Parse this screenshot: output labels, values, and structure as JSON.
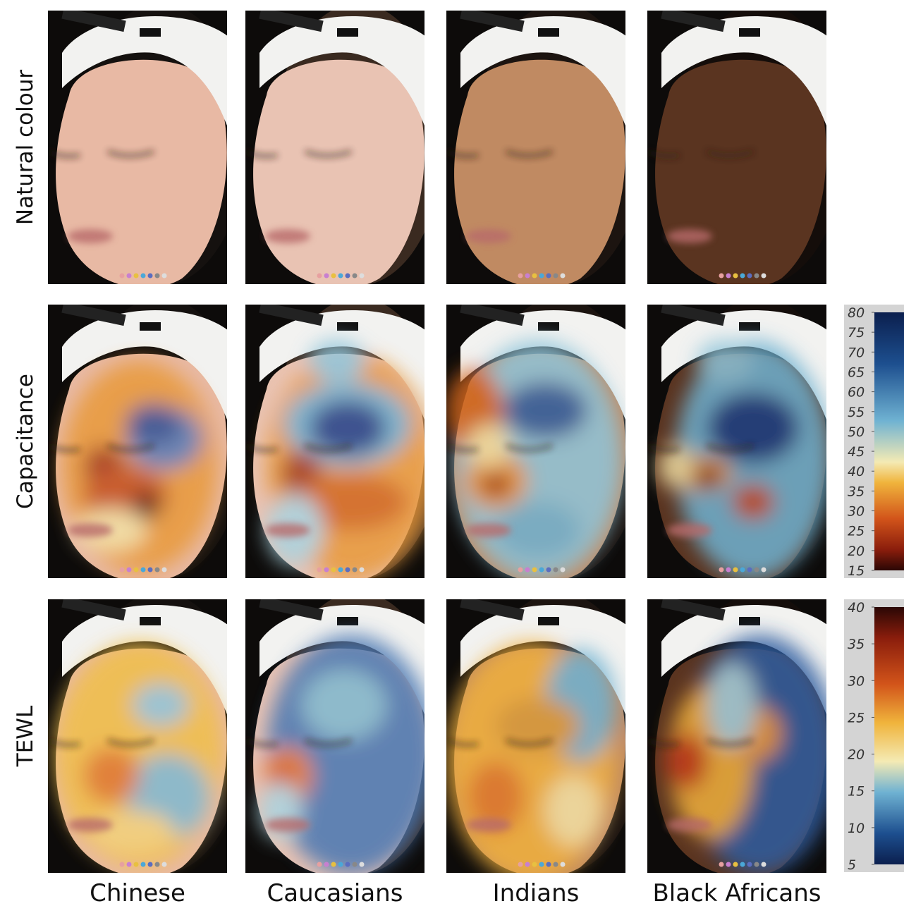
{
  "row_labels": [
    "Natural colour",
    "Capacitance",
    "TEWL"
  ],
  "column_labels": [
    "Chinese",
    "Caucasians",
    "Indians",
    "Black Africans"
  ],
  "colorbars": [
    {
      "lim": [
        15,
        80
      ],
      "ticks": [
        80,
        75,
        70,
        65,
        60,
        55,
        50,
        45,
        40,
        35,
        30,
        25,
        20,
        15
      ]
    },
    {
      "lim": [
        5,
        40
      ],
      "ticks": [
        40,
        35,
        30,
        25,
        20,
        15,
        10,
        5
      ]
    }
  ]
}
